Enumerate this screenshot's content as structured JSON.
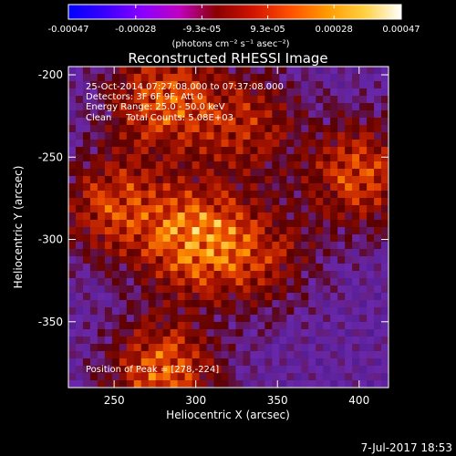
{
  "colorbar": {
    "tick_labels": [
      "-0.00047",
      "-0.00028",
      "-9.3e-05",
      "9.3e-05",
      "0.00028",
      "0.00047"
    ],
    "tick_values": [
      -0.00047,
      -0.00028,
      -9.3e-05,
      9.3e-05,
      0.00028,
      0.00047
    ],
    "range": [
      -0.00047,
      0.00047
    ],
    "units_label": "(photons cm⁻² s⁻¹ asec⁻²)",
    "gradient_stops": [
      "#0000ff",
      "#3a00ff",
      "#8a00ff",
      "#c000c0",
      "#8a0000",
      "#d21400",
      "#ff5000",
      "#ff9a00",
      "#ffd040",
      "#ffffff"
    ]
  },
  "chart_data": {
    "type": "heatmap",
    "title": "Reconstructed RHESSI Image",
    "xlabel": "Heliocentric X (arcsec)",
    "ylabel": "Heliocentric Y (arcsec)",
    "xlim": [
      222,
      418
    ],
    "ylim": [
      -390,
      -195
    ],
    "x_ticks": [
      250,
      300,
      350,
      400
    ],
    "y_ticks": [
      -200,
      -250,
      -300,
      -350
    ],
    "annotations": {
      "time_range": "25-Oct-2014 07:27:08.000 to 07:37:08.000",
      "detectors": "Detectors: 3F 6F 9F, Att 0",
      "energy_range": "Energy Range: 25.0 - 50.0 keV",
      "clean_counts": "Clean     Total Counts: 5.08E+03",
      "peak_position": "Position of Peak = [278,-224]"
    },
    "peak": [
      278,
      -224
    ],
    "bright_regions": [
      {
        "x": 300,
        "y": -300,
        "level": 1.0
      },
      {
        "x": 280,
        "y": -380,
        "level": 0.85
      },
      {
        "x": 280,
        "y": -215,
        "level": 0.8
      },
      {
        "x": 250,
        "y": -280,
        "level": 0.7
      },
      {
        "x": 400,
        "y": -260,
        "level": 0.75
      },
      {
        "x": 330,
        "y": -230,
        "level": 0.55
      },
      {
        "x": 340,
        "y": -310,
        "level": 0.5
      }
    ]
  },
  "datestamp": "7-Jul-2017 18:53"
}
